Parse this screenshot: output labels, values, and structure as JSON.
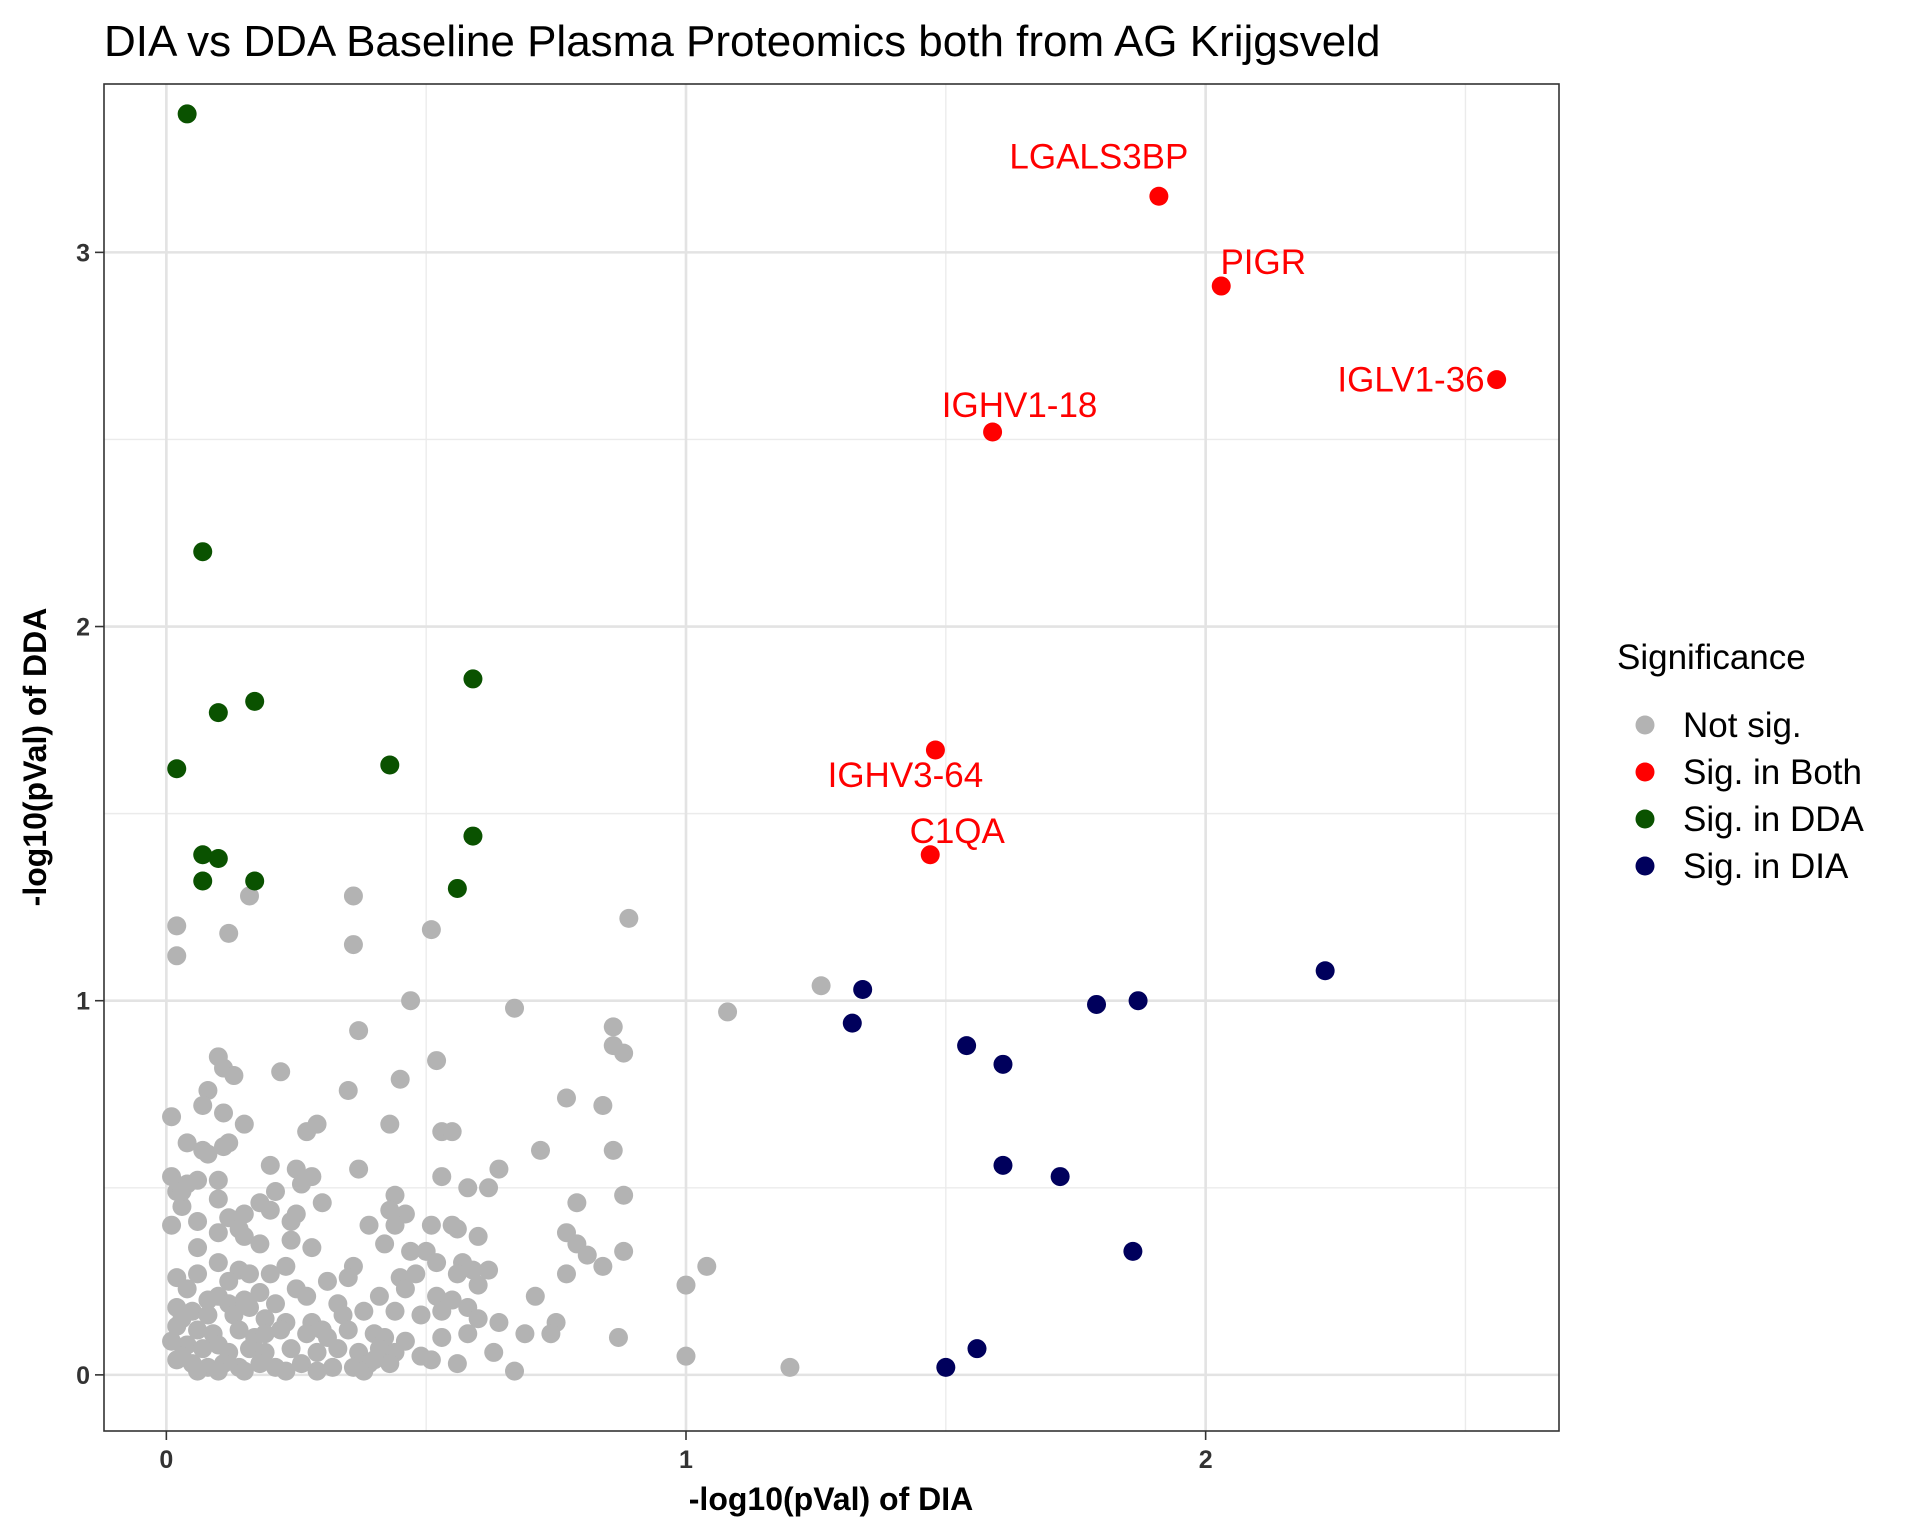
{
  "chart_data": {
    "type": "scatter",
    "title": "DIA vs DDA Baseline Plasma Proteomics both from AG Krijgsveld",
    "xlabel": "-log10(pVal) of DIA",
    "ylabel": "-log10(pVal) of DDA",
    "xlim": [
      -0.12,
      2.68
    ],
    "ylim": [
      -0.15,
      3.45
    ],
    "x_ticks": [
      0,
      1,
      2
    ],
    "y_ticks": [
      0,
      1,
      2,
      3
    ],
    "grid": true,
    "legend": {
      "title": "Significance",
      "position": "right",
      "entries": [
        {
          "label": "Not sig.",
          "color": "#b3b3b3"
        },
        {
          "label": "Sig. in Both",
          "color": "#ff0000"
        },
        {
          "label": "Sig. in DDA",
          "color": "#0a5200"
        },
        {
          "label": "Sig. in DIA",
          "color": "#00005c"
        }
      ]
    },
    "series": [
      {
        "name": "Not sig.",
        "color": "#b3b3b3",
        "points": [
          [
            0.02,
            1.2
          ],
          [
            0.02,
            1.12
          ],
          [
            0.12,
            1.18
          ],
          [
            0.16,
            1.28
          ],
          [
            0.36,
            1.28
          ],
          [
            0.36,
            1.15
          ],
          [
            0.51,
            1.19
          ],
          [
            0.89,
            1.22
          ],
          [
            0.47,
            1.0
          ],
          [
            0.67,
            0.98
          ],
          [
            0.37,
            0.92
          ],
          [
            0.86,
            0.93
          ],
          [
            0.88,
            0.86
          ],
          [
            0.86,
            0.88
          ],
          [
            0.52,
            0.84
          ],
          [
            0.77,
            0.74
          ],
          [
            0.45,
            0.79
          ],
          [
            0.35,
            0.76
          ],
          [
            0.22,
            0.81
          ],
          [
            0.1,
            0.85
          ],
          [
            0.11,
            0.82
          ],
          [
            0.13,
            0.8
          ],
          [
            0.08,
            0.76
          ],
          [
            0.07,
            0.72
          ],
          [
            0.11,
            0.7
          ],
          [
            0.01,
            0.69
          ],
          [
            0.15,
            0.67
          ],
          [
            0.43,
            0.67
          ],
          [
            0.29,
            0.67
          ],
          [
            0.27,
            0.65
          ],
          [
            0.53,
            0.65
          ],
          [
            0.55,
            0.65
          ],
          [
            0.84,
            0.72
          ],
          [
            0.86,
            0.6
          ],
          [
            0.72,
            0.6
          ],
          [
            0.04,
            0.62
          ],
          [
            0.11,
            0.61
          ],
          [
            0.12,
            0.62
          ],
          [
            0.08,
            0.59
          ],
          [
            0.2,
            0.56
          ],
          [
            0.37,
            0.55
          ],
          [
            0.25,
            0.55
          ],
          [
            0.64,
            0.55
          ],
          [
            0.28,
            0.53
          ],
          [
            0.53,
            0.53
          ],
          [
            0.06,
            0.52
          ],
          [
            0.04,
            0.51
          ],
          [
            0.1,
            0.52
          ],
          [
            0.21,
            0.49
          ],
          [
            0.26,
            0.51
          ],
          [
            0.62,
            0.5
          ],
          [
            0.58,
            0.5
          ],
          [
            0.88,
            0.48
          ],
          [
            0.02,
            0.49
          ],
          [
            0.1,
            0.47
          ],
          [
            0.18,
            0.46
          ],
          [
            0.44,
            0.48
          ],
          [
            0.3,
            0.46
          ],
          [
            0.2,
            0.44
          ],
          [
            0.15,
            0.43
          ],
          [
            0.03,
            0.45
          ],
          [
            0.79,
            0.46
          ],
          [
            0.43,
            0.44
          ],
          [
            0.46,
            0.43
          ],
          [
            0.25,
            0.43
          ],
          [
            0.12,
            0.42
          ],
          [
            0.06,
            0.41
          ],
          [
            0.24,
            0.41
          ],
          [
            0.39,
            0.4
          ],
          [
            0.44,
            0.4
          ],
          [
            0.51,
            0.4
          ],
          [
            0.55,
            0.4
          ],
          [
            0.56,
            0.39
          ],
          [
            0.6,
            0.37
          ],
          [
            0.77,
            0.38
          ],
          [
            0.79,
            0.35
          ],
          [
            0.81,
            0.32
          ],
          [
            0.1,
            0.38
          ],
          [
            0.15,
            0.37
          ],
          [
            0.18,
            0.35
          ],
          [
            0.06,
            0.34
          ],
          [
            0.28,
            0.34
          ],
          [
            0.42,
            0.35
          ],
          [
            0.47,
            0.33
          ],
          [
            0.5,
            0.33
          ],
          [
            0.52,
            0.3
          ],
          [
            0.57,
            0.3
          ],
          [
            0.88,
            0.33
          ],
          [
            0.84,
            0.29
          ],
          [
            1.04,
            0.29
          ],
          [
            0.77,
            0.27
          ],
          [
            0.36,
            0.29
          ],
          [
            0.23,
            0.29
          ],
          [
            0.14,
            0.28
          ],
          [
            0.16,
            0.27
          ],
          [
            0.1,
            0.3
          ],
          [
            0.02,
            0.26
          ],
          [
            0.06,
            0.27
          ],
          [
            0.12,
            0.25
          ],
          [
            0.2,
            0.27
          ],
          [
            0.31,
            0.25
          ],
          [
            0.35,
            0.26
          ],
          [
            0.45,
            0.26
          ],
          [
            0.48,
            0.27
          ],
          [
            0.56,
            0.27
          ],
          [
            0.59,
            0.28
          ],
          [
            0.62,
            0.28
          ],
          [
            0.6,
            0.24
          ],
          [
            0.25,
            0.23
          ],
          [
            0.18,
            0.22
          ],
          [
            0.1,
            0.21
          ],
          [
            0.04,
            0.23
          ],
          [
            0.12,
            0.19
          ],
          [
            0.16,
            0.18
          ],
          [
            0.21,
            0.19
          ],
          [
            0.27,
            0.21
          ],
          [
            0.33,
            0.19
          ],
          [
            0.41,
            0.21
          ],
          [
            0.46,
            0.23
          ],
          [
            0.52,
            0.21
          ],
          [
            0.55,
            0.2
          ],
          [
            0.58,
            0.18
          ],
          [
            0.71,
            0.21
          ],
          [
            1.0,
            0.24
          ],
          [
            0.02,
            0.18
          ],
          [
            0.05,
            0.17
          ],
          [
            0.08,
            0.16
          ],
          [
            0.13,
            0.16
          ],
          [
            0.19,
            0.15
          ],
          [
            0.23,
            0.14
          ],
          [
            0.28,
            0.14
          ],
          [
            0.34,
            0.16
          ],
          [
            0.38,
            0.17
          ],
          [
            0.44,
            0.17
          ],
          [
            0.49,
            0.16
          ],
          [
            0.53,
            0.17
          ],
          [
            0.6,
            0.15
          ],
          [
            0.64,
            0.14
          ],
          [
            0.69,
            0.11
          ],
          [
            0.75,
            0.14
          ],
          [
            0.02,
            0.13
          ],
          [
            0.06,
            0.12
          ],
          [
            0.09,
            0.11
          ],
          [
            0.14,
            0.12
          ],
          [
            0.17,
            0.1
          ],
          [
            0.22,
            0.12
          ],
          [
            0.27,
            0.11
          ],
          [
            0.31,
            0.1
          ],
          [
            0.35,
            0.12
          ],
          [
            0.4,
            0.11
          ],
          [
            0.42,
            0.1
          ],
          [
            0.46,
            0.09
          ],
          [
            0.53,
            0.1
          ],
          [
            0.58,
            0.11
          ],
          [
            0.74,
            0.11
          ],
          [
            0.87,
            0.1
          ],
          [
            0.01,
            0.09
          ],
          [
            0.04,
            0.08
          ],
          [
            0.07,
            0.07
          ],
          [
            0.1,
            0.08
          ],
          [
            0.12,
            0.06
          ],
          [
            0.16,
            0.07
          ],
          [
            0.19,
            0.06
          ],
          [
            0.24,
            0.07
          ],
          [
            0.29,
            0.06
          ],
          [
            0.33,
            0.07
          ],
          [
            0.37,
            0.06
          ],
          [
            0.41,
            0.07
          ],
          [
            0.44,
            0.06
          ],
          [
            0.49,
            0.05
          ],
          [
            0.51,
            0.04
          ],
          [
            0.63,
            0.06
          ],
          [
            1.0,
            0.05
          ],
          [
            0.02,
            0.04
          ],
          [
            0.05,
            0.03
          ],
          [
            0.08,
            0.02
          ],
          [
            0.11,
            0.03
          ],
          [
            0.14,
            0.02
          ],
          [
            0.18,
            0.03
          ],
          [
            0.21,
            0.02
          ],
          [
            0.26,
            0.03
          ],
          [
            0.32,
            0.02
          ],
          [
            0.36,
            0.02
          ],
          [
            0.39,
            0.03
          ],
          [
            0.43,
            0.03
          ],
          [
            0.56,
            0.03
          ],
          [
            0.67,
            0.01
          ],
          [
            1.2,
            0.02
          ],
          [
            0.06,
            0.01
          ],
          [
            0.1,
            0.01
          ],
          [
            0.15,
            0.01
          ],
          [
            0.23,
            0.01
          ],
          [
            0.29,
            0.01
          ],
          [
            0.38,
            0.01
          ],
          [
            0.19,
            0.11
          ],
          [
            0.08,
            0.2
          ],
          [
            0.15,
            0.2
          ],
          [
            0.3,
            0.12
          ],
          [
            0.03,
            0.15
          ],
          [
            0.01,
            0.53
          ],
          [
            0.07,
            0.6
          ],
          [
            0.03,
            0.49
          ],
          [
            0.14,
            0.39
          ],
          [
            0.01,
            0.4
          ],
          [
            0.24,
            0.36
          ],
          [
            0.03,
            0.05
          ],
          [
            0.4,
            0.04
          ],
          [
            1.26,
            1.04
          ],
          [
            1.08,
            0.97
          ]
        ]
      },
      {
        "name": "Sig. in Both",
        "color": "#ff0000",
        "points": [
          [
            1.91,
            3.15
          ],
          [
            2.03,
            2.91
          ],
          [
            2.56,
            2.66
          ],
          [
            1.59,
            2.52
          ],
          [
            1.48,
            1.67
          ],
          [
            1.47,
            1.39
          ]
        ],
        "labels": [
          "LGALS3BP",
          "PIGR",
          "IGLV1-36",
          "IGHV1-18",
          "IGHV3-64",
          "C1QA"
        ]
      },
      {
        "name": "Sig. in DDA",
        "color": "#0a5200",
        "points": [
          [
            0.04,
            3.37
          ],
          [
            0.07,
            2.2
          ],
          [
            0.59,
            1.86
          ],
          [
            0.17,
            1.8
          ],
          [
            0.1,
            1.77
          ],
          [
            0.43,
            1.63
          ],
          [
            0.02,
            1.62
          ],
          [
            0.59,
            1.44
          ],
          [
            0.07,
            1.39
          ],
          [
            0.1,
            1.38
          ],
          [
            0.07,
            1.32
          ],
          [
            0.17,
            1.32
          ],
          [
            0.56,
            1.3
          ]
        ]
      },
      {
        "name": "Sig. in DIA",
        "color": "#00005c",
        "points": [
          [
            2.23,
            1.08
          ],
          [
            1.34,
            1.03
          ],
          [
            1.87,
            1.0
          ],
          [
            1.79,
            0.99
          ],
          [
            1.32,
            0.94
          ],
          [
            1.54,
            0.88
          ],
          [
            1.61,
            0.83
          ],
          [
            1.61,
            0.56
          ],
          [
            1.72,
            0.53
          ],
          [
            1.86,
            0.33
          ],
          [
            1.56,
            0.07
          ],
          [
            1.5,
            0.02
          ]
        ]
      }
    ]
  }
}
